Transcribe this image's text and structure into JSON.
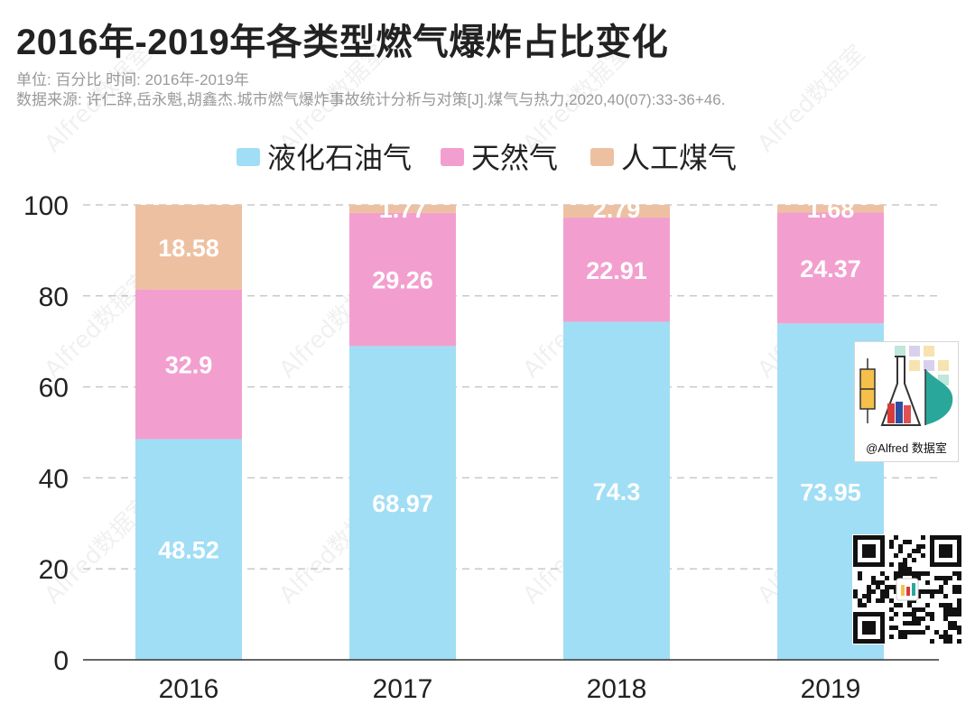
{
  "header": {
    "title": "2016年-2019年各类型燃气爆炸占比变化",
    "unit_line": "单位: 百分比 时间: 2016年-2019年",
    "source_line": "数据来源: 许仁辞,岳永魁,胡鑫杰.城市燃气爆炸事故统计分析与对策[J].煤气与热力,2020,40(07):33-36+46."
  },
  "watermark": {
    "text": "Alfred数据室"
  },
  "brand": {
    "caption": "@Alfred 数据室"
  },
  "chart_data": {
    "type": "bar",
    "stacked": true,
    "categories": [
      "2016",
      "2017",
      "2018",
      "2019"
    ],
    "series": [
      {
        "name": "液化石油气",
        "color": "#a0def5",
        "label_color": "#ffffff",
        "values": [
          48.52,
          68.97,
          74.3,
          73.95
        ]
      },
      {
        "name": "天然气",
        "color": "#f29fcf",
        "label_color": "#ffffff",
        "values": [
          32.9,
          29.26,
          22.91,
          24.37
        ]
      },
      {
        "name": "人工煤气",
        "color": "#eec0a2",
        "label_color": "#ffffff",
        "values": [
          18.58,
          1.77,
          2.79,
          1.68
        ]
      }
    ],
    "y_ticks": [
      "0",
      "20",
      "40",
      "60",
      "80",
      "100"
    ],
    "ylim": [
      0,
      100
    ],
    "grid": true,
    "legend_position": "top-center",
    "title": "2016年-2019年各类型燃气爆炸占比变化",
    "xlabel": "",
    "ylabel": ""
  }
}
